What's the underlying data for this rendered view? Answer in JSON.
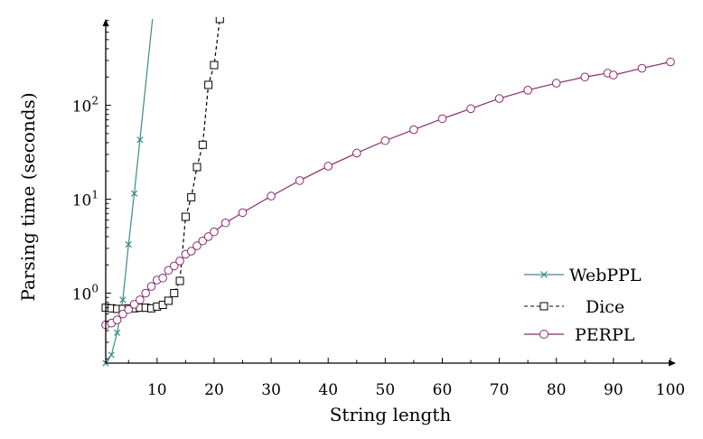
{
  "chart_data": {
    "type": "line",
    "title": "",
    "xlabel": "String length",
    "ylabel": "Parsing time (seconds)",
    "xlim": [
      1,
      100
    ],
    "ylim": [
      0.18,
      830
    ],
    "yscale": "log",
    "grid": false,
    "legend_position": "bottom-right",
    "x_ticks": [
      10,
      20,
      30,
      40,
      50,
      60,
      70,
      80,
      90,
      100
    ],
    "x_tick_labels": [
      "10",
      "20",
      "30",
      "40",
      "50",
      "60",
      "70",
      "80",
      "90",
      "100"
    ],
    "y_ticks": [
      1,
      10,
      100
    ],
    "y_tick_labels": [
      {
        "base": "10",
        "exp": "0"
      },
      {
        "base": "10",
        "exp": "1"
      },
      {
        "base": "10",
        "exp": "2"
      }
    ],
    "series": [
      {
        "name": "WebPPL",
        "color": "#3a8a8a",
        "marker": "x",
        "dash": "solid",
        "x": [
          1,
          2,
          3,
          4,
          5,
          6,
          7
        ],
        "y": [
          0.18,
          0.22,
          0.38,
          0.85,
          3.3,
          11.5,
          43
        ],
        "extends_to": [
          9.2,
          830
        ]
      },
      {
        "name": "Dice",
        "color": "#000000",
        "marker": "square",
        "dash": "dashed",
        "x": [
          1,
          2,
          3,
          4,
          5,
          6,
          7,
          8,
          9,
          10,
          11,
          12,
          13,
          14,
          15,
          16,
          17,
          18,
          19,
          20,
          21
        ],
        "y": [
          0.7,
          0.69,
          0.68,
          0.68,
          0.69,
          0.69,
          0.7,
          0.7,
          0.69,
          0.72,
          0.75,
          0.83,
          1.0,
          1.35,
          6.5,
          10.5,
          22,
          38,
          165,
          268,
          830
        ]
      },
      {
        "name": "PERPL",
        "color": "#8b2a6e",
        "marker": "circle",
        "dash": "solid",
        "x": [
          1,
          2,
          3,
          4,
          5,
          6,
          7,
          8,
          9,
          10,
          11,
          12,
          13,
          14,
          15,
          16,
          17,
          18,
          19,
          20,
          22,
          25,
          30,
          35,
          40,
          45,
          50,
          55,
          60,
          65,
          70,
          75,
          80,
          85,
          89,
          90,
          95,
          100
        ],
        "y": [
          0.46,
          0.48,
          0.52,
          0.6,
          0.67,
          0.76,
          0.85,
          1.0,
          1.18,
          1.38,
          1.45,
          1.75,
          1.95,
          2.2,
          2.6,
          2.8,
          3.2,
          3.6,
          4.0,
          4.5,
          5.6,
          7.2,
          10.8,
          15.8,
          22.5,
          31,
          42,
          55,
          72,
          92,
          118,
          145,
          172,
          200,
          220,
          210,
          248,
          290
        ]
      }
    ]
  }
}
